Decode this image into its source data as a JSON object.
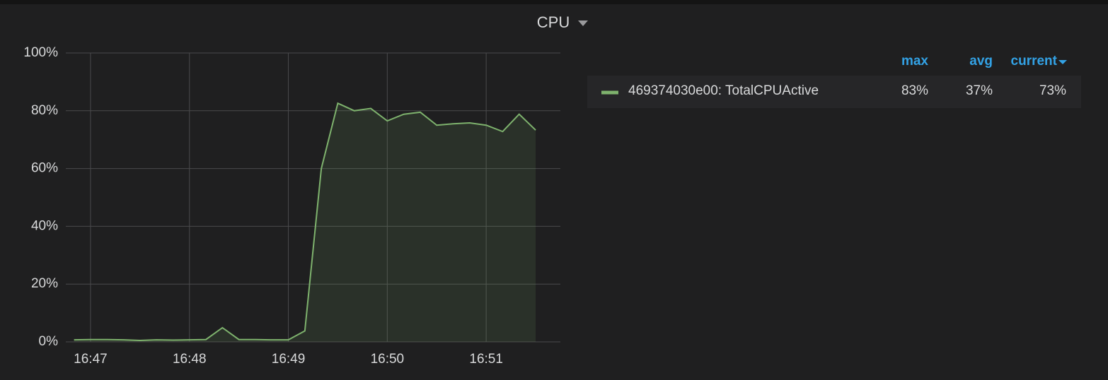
{
  "chart_data": {
    "type": "line",
    "title": "CPU",
    "x": [
      60410,
      60420,
      60430,
      60440,
      60450,
      60460,
      60470,
      60480,
      60490,
      60500,
      60510,
      60520,
      60530,
      60540,
      60550,
      60560,
      60570,
      60580,
      60590,
      60600,
      60610,
      60620,
      60630,
      60640,
      60650,
      60660,
      60670,
      60680,
      60690
    ],
    "xlim": [
      60405,
      60705
    ],
    "xticks": [
      {
        "value": 60420,
        "label": "16:47"
      },
      {
        "value": 60480,
        "label": "16:48"
      },
      {
        "value": 60540,
        "label": "16:49"
      },
      {
        "value": 60600,
        "label": "16:50"
      },
      {
        "value": 60660,
        "label": "16:51"
      }
    ],
    "ylim": [
      0,
      100
    ],
    "yticks": [
      {
        "value": 0,
        "label": "0%"
      },
      {
        "value": 20,
        "label": "20%"
      },
      {
        "value": 40,
        "label": "40%"
      },
      {
        "value": 60,
        "label": "60%"
      },
      {
        "value": 80,
        "label": "80%"
      },
      {
        "value": 100,
        "label": "100%"
      }
    ],
    "grid": true,
    "fill_area": true,
    "legend_columns": [
      "max",
      "avg",
      "current"
    ],
    "series": [
      {
        "name": "469374030e00: TotalCPUActive",
        "color": "#7eb26d",
        "values": [
          0.7,
          0.8,
          0.8,
          0.7,
          0.5,
          0.7,
          0.6,
          0.7,
          0.8,
          4.9,
          0.8,
          0.8,
          0.7,
          0.7,
          3.8,
          60,
          82.6,
          80,
          80.8,
          76.5,
          78.8,
          79.5,
          75,
          75.5,
          75.8,
          75,
          72.8,
          78.8,
          73.3
        ],
        "stats": [
          83,
          37,
          73
        ],
        "stats_labels": [
          "83%",
          "37%",
          "73%"
        ]
      }
    ]
  }
}
